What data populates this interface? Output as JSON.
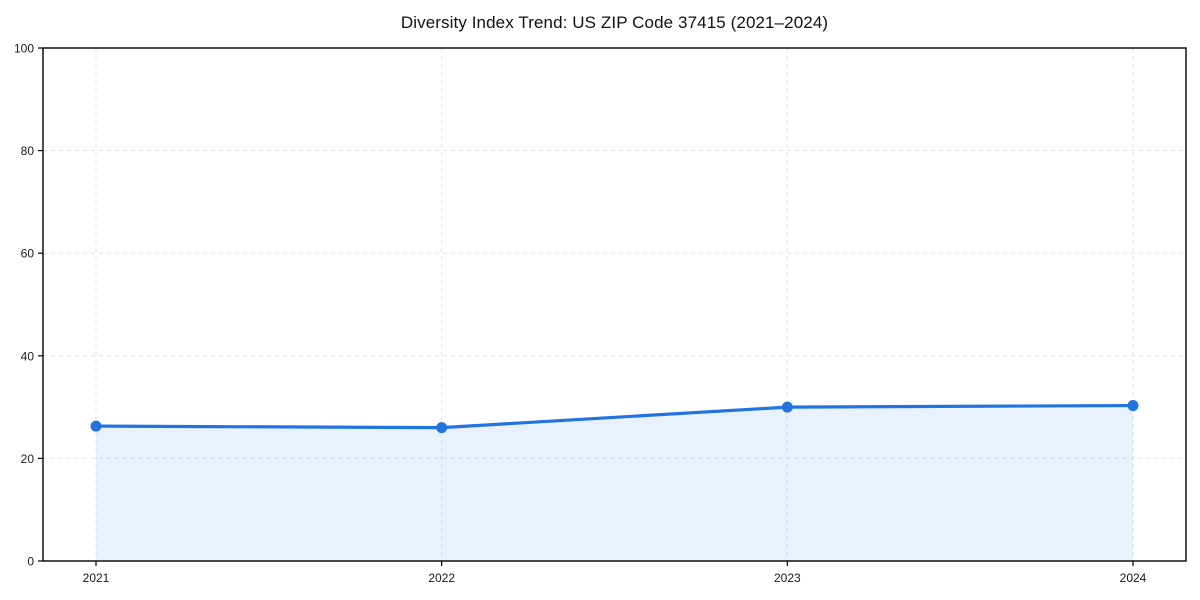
{
  "chart_data": {
    "type": "line",
    "title": "Diversity Index Trend: US ZIP Code 37415 (2021–2024)",
    "categories": [
      "2021",
      "2022",
      "2023",
      "2024"
    ],
    "x": [
      2021,
      2022,
      2023,
      2024
    ],
    "series": [
      {
        "name": "Diversity Index",
        "values": [
          26.3,
          26.0,
          30.0,
          30.3
        ]
      }
    ],
    "xlabel": "",
    "ylabel": "",
    "ylim": [
      0,
      100
    ],
    "yticks": [
      0,
      20,
      40,
      60,
      80,
      100
    ],
    "grid": "on",
    "grid_style": "dashed",
    "legend_position": "none",
    "area_fill": true,
    "marker": "circle",
    "colors": {
      "line": "#2173e2",
      "marker": "#2173e2",
      "area_fill": "rgba(33,115,226,0.10)",
      "gridline": "#e2e2e2",
      "spine": "#000000",
      "tick_label": "#1a1a1a",
      "background": "#ffffff"
    }
  }
}
